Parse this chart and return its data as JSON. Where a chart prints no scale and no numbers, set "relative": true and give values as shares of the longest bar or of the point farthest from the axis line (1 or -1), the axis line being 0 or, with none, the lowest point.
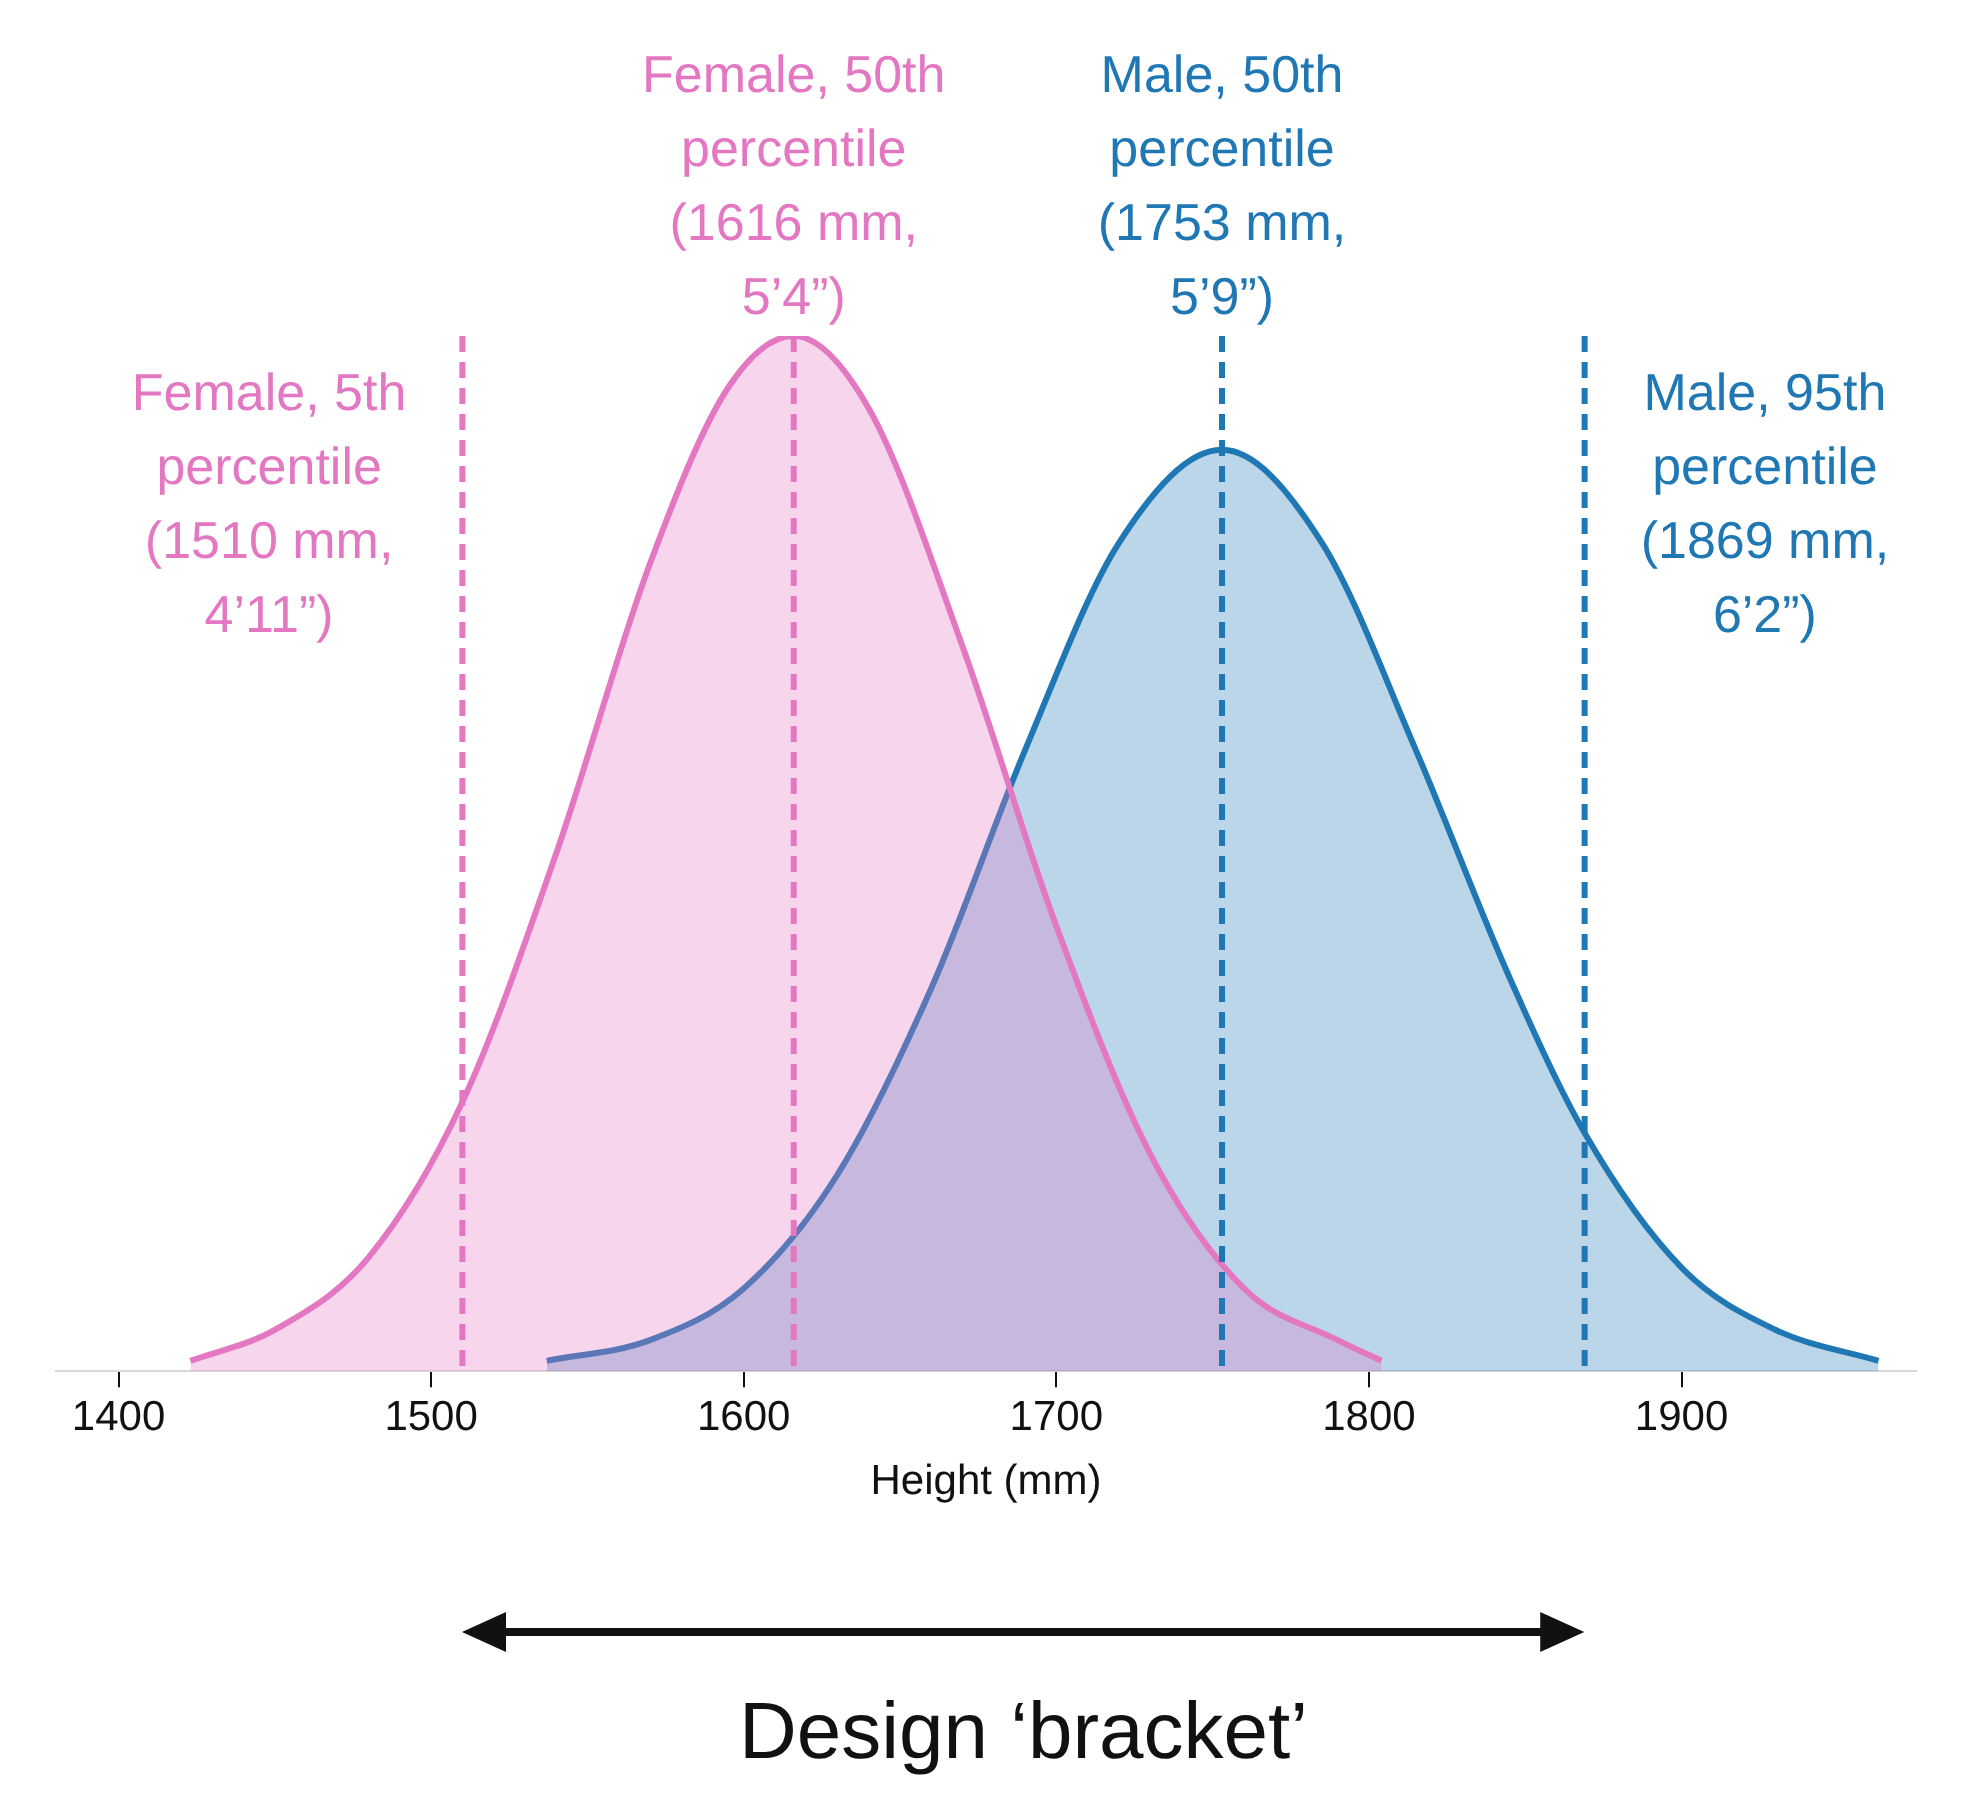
{
  "chart_data": {
    "type": "area",
    "relative": true,
    "xlabel": "Height (mm)",
    "xlim": [
      1380,
      1975
    ],
    "xticks": [
      1400,
      1500,
      1600,
      1700,
      1800,
      1900
    ],
    "grid": false,
    "legend": false,
    "line_style": "solid",
    "marker": "none",
    "series": [
      {
        "color": "#e377c2",
        "x": [
          1423,
          1450,
          1480,
          1510,
          1540,
          1570,
          1595,
          1616,
          1640,
          1670,
          1700,
          1730,
          1760,
          1790,
          1804
        ],
        "values": [
          0.01,
          0.04,
          0.11,
          0.26,
          0.5,
          0.78,
          0.95,
          1,
          0.93,
          0.7,
          0.43,
          0.21,
          0.08,
          0.03,
          0.01
        ]
      },
      {
        "color": "#1f77b4",
        "x": [
          1537,
          1570,
          1600,
          1630,
          1660,
          1690,
          1720,
          1753,
          1785,
          1815,
          1845,
          1869,
          1900,
          1930,
          1963
        ],
        "values": [
          0.01,
          0.03,
          0.08,
          0.19,
          0.37,
          0.6,
          0.8,
          0.89,
          0.8,
          0.6,
          0.38,
          0.23,
          0.1,
          0.04,
          0.01
        ]
      }
    ],
    "ref_lines": [
      {
        "axis": "x",
        "value": 1510,
        "label": "Female, 5th\npercentile\n(1510 mm,\n4’11”)",
        "color": "#e377c2",
        "line_style": "dashed"
      },
      {
        "axis": "x",
        "value": 1616,
        "label": "Female, 50th\npercentile\n(1616 mm,\n5’4”)",
        "color": "#e377c2",
        "line_style": "dashed"
      },
      {
        "axis": "x",
        "value": 1753,
        "label": "Male, 50th\npercentile\n(1753 mm,\n5’9”)",
        "color": "#1f77b4",
        "line_style": "dashed"
      },
      {
        "axis": "x",
        "value": 1869,
        "label": "Male, 95th\npercentile\n(1869 mm,\n6’2”)",
        "color": "#1f77b4",
        "line_style": "dashed"
      }
    ],
    "annotations": [
      "Design ‘bracket’"
    ]
  }
}
